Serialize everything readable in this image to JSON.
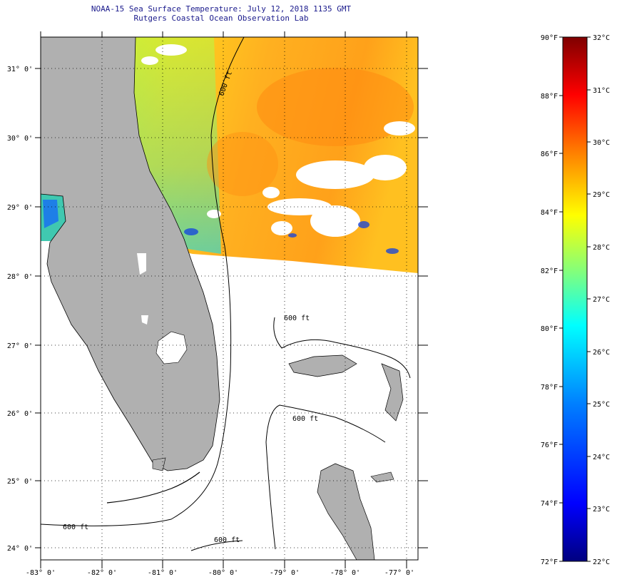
{
  "title": "NOAA-15 Sea Surface Temperature:  July 12, 2018 1135 GMT",
  "subtitle": "Rutgers Coastal Ocean Observation Lab",
  "map": {
    "lon_range": [
      -83,
      -76.8
    ],
    "lat_range": [
      23.85,
      31.45
    ],
    "lat_labels": [
      "24° 0'",
      "25° 0'",
      "26° 0'",
      "27° 0'",
      "28° 0'",
      "29° 0'",
      "30° 0'",
      "31° 0'"
    ],
    "lon_labels": [
      "-83° 0'",
      "-82° 0'",
      "-81° 0'",
      "-80° 0'",
      "-79° 0'",
      "-78° 0'",
      "-77° 0'"
    ],
    "contour_labels": [
      "600 ft",
      "600 ft",
      "600 ft",
      "600 ft",
      "600 ft"
    ],
    "land_color": "#b0b0b0"
  },
  "colorbar": {
    "fahrenheit_labels": [
      "90°F",
      "88°F",
      "86°F",
      "84°F",
      "82°F",
      "80°F",
      "78°F",
      "76°F",
      "74°F",
      "72°F"
    ],
    "celsius_labels": [
      "32°C",
      "31°C",
      "30°C",
      "29°C",
      "28°C",
      "27°C",
      "26°C",
      "25°C",
      "24°C",
      "23°C",
      "22°C"
    ],
    "range_f": [
      72,
      90
    ],
    "range_c": [
      22,
      32
    ],
    "colors": [
      "#00007f",
      "#0000ff",
      "#007fff",
      "#00ffff",
      "#7fff7f",
      "#ffff00",
      "#ff7f00",
      "#ff0000",
      "#7f0000"
    ]
  }
}
